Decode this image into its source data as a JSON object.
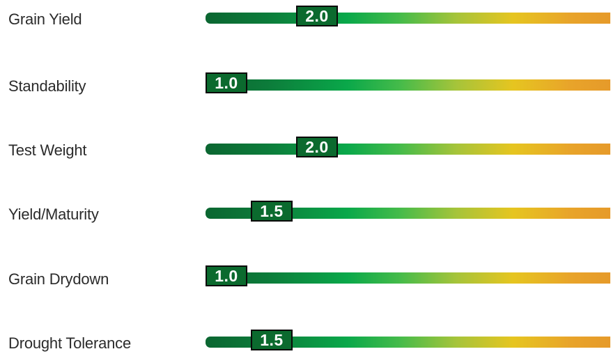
{
  "chart_data": {
    "type": "bar",
    "categories": [
      "Grain Yield",
      "Standability",
      "Test Weight",
      "Yield/Maturity",
      "Grain Drydown",
      "Drought Tolerance"
    ],
    "values": [
      2.0,
      1.0,
      2.0,
      1.5,
      1.0,
      1.5
    ],
    "value_labels": [
      "2.0",
      "1.0",
      "2.0",
      "1.5",
      "1.0",
      "1.5"
    ],
    "xlim": [
      1.0,
      10.0
    ],
    "grid": false,
    "colors": {
      "scale_start": "#0b6631",
      "scale_mid": "#0aa84a",
      "scale_yellow": "#e6c520",
      "scale_end": "#e69a2a",
      "marker_fill": "#0b6a2e",
      "marker_border": "#0a0a0a",
      "marker_text": "#ffffff",
      "label_text": "#2b2b2b"
    }
  }
}
